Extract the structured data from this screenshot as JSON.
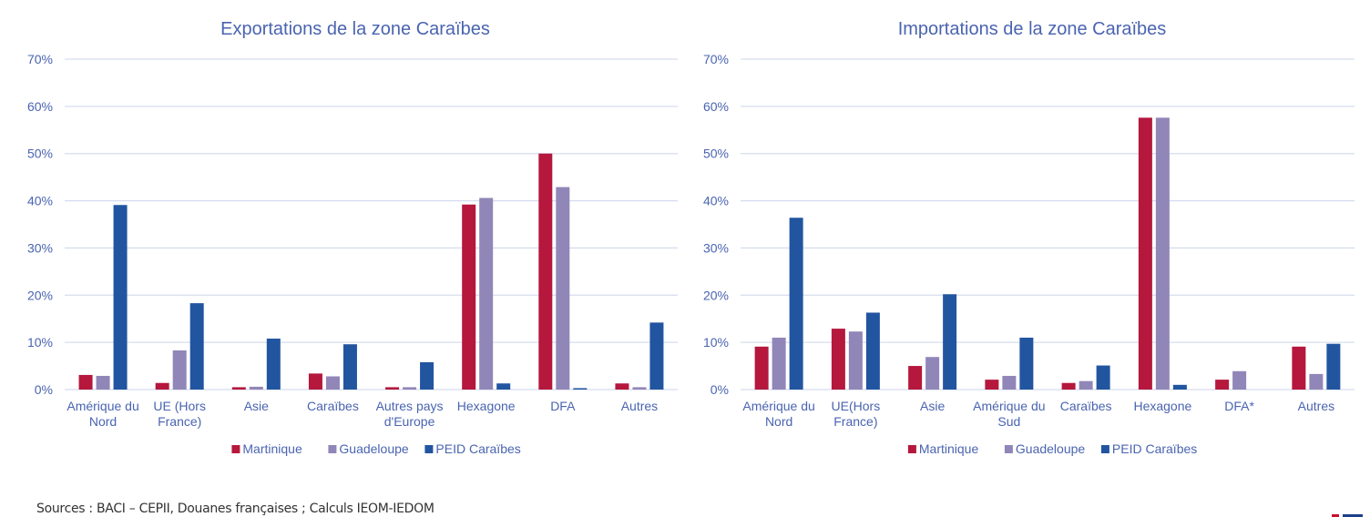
{
  "colors": {
    "Martinique": "#B5173D",
    "Guadeloupe": "#9186B8",
    "PEID Caraïbes": "#2255A0",
    "text": "#4A64B0",
    "grid": "#D6DDEE"
  },
  "chart_data": [
    {
      "type": "bar",
      "title": "Exportations de la zone Caraïbes",
      "xlabel": "",
      "ylabel": "",
      "ylim": [
        0,
        70
      ],
      "yticks": [
        "0%",
        "10%",
        "20%",
        "30%",
        "40%",
        "50%",
        "60%",
        "70%"
      ],
      "grid": true,
      "legend_position": "bottom",
      "categories": [
        [
          "Amérique du",
          "Nord"
        ],
        [
          "UE (Hors",
          "France)"
        ],
        [
          "Asie"
        ],
        [
          "Caraïbes"
        ],
        [
          "Autres pays",
          "d'Europe"
        ],
        [
          "Hexagone"
        ],
        [
          "DFA"
        ],
        [
          "Autres"
        ]
      ],
      "series": [
        {
          "name": "Martinique",
          "values": [
            3.1,
            1.4,
            0.5,
            3.4,
            0.5,
            39.2,
            50.0,
            1.3
          ]
        },
        {
          "name": "Guadeloupe",
          "values": [
            2.9,
            8.3,
            0.6,
            2.8,
            0.5,
            40.6,
            42.9,
            0.5
          ]
        },
        {
          "name": "PEID Caraïbes",
          "values": [
            39.1,
            18.3,
            10.8,
            9.6,
            5.8,
            1.3,
            0.3,
            14.2
          ]
        }
      ]
    },
    {
      "type": "bar",
      "title": "Importations de la zone Caraïbes",
      "xlabel": "",
      "ylabel": "",
      "ylim": [
        0,
        70
      ],
      "yticks": [
        "0%",
        "10%",
        "20%",
        "30%",
        "40%",
        "50%",
        "60%",
        "70%"
      ],
      "grid": true,
      "legend_position": "bottom",
      "categories": [
        [
          "Amérique du",
          "Nord"
        ],
        [
          "UE(Hors",
          "France)"
        ],
        [
          "Asie"
        ],
        [
          "Amérique du",
          "Sud"
        ],
        [
          "Caraïbes"
        ],
        [
          "Hexagone"
        ],
        [
          "DFA*"
        ],
        [
          "Autres"
        ]
      ],
      "series": [
        {
          "name": "Martinique",
          "values": [
            9.1,
            12.9,
            5.0,
            2.1,
            1.4,
            57.6,
            2.1,
            9.1
          ]
        },
        {
          "name": "Guadeloupe",
          "values": [
            11.0,
            12.3,
            6.9,
            2.9,
            1.8,
            57.6,
            3.9,
            3.3
          ]
        },
        {
          "name": "PEID Caraïbes",
          "values": [
            36.4,
            16.3,
            20.2,
            11.0,
            5.1,
            1.0,
            0,
            9.7
          ]
        }
      ]
    }
  ],
  "footer": {
    "source": "Sources : BACI – CEPII, Douanes françaises ; Calculs IEOM-IEDOM"
  }
}
